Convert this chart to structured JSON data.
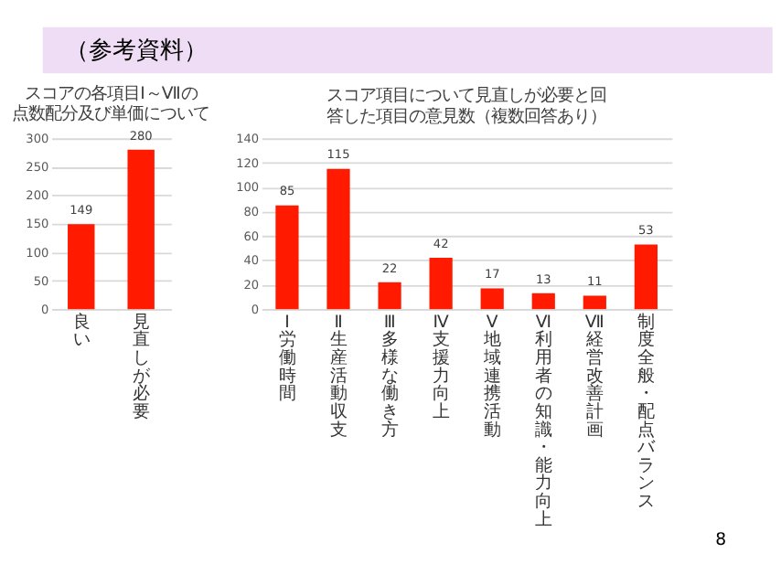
{
  "chart_data": [
    {
      "type": "bar",
      "title": "スコアの各項目Ⅰ～Ⅶの点数配分及び単価について",
      "annotations": [
        "（参考資料）"
      ],
      "categories": [
        "良い",
        "見直しが必要"
      ],
      "values": [
        149,
        280
      ],
      "color": "#ff1a00",
      "ylim": [
        0,
        300
      ],
      "yticks": [
        0,
        50,
        100,
        150,
        200,
        250,
        300
      ],
      "grid": "y",
      "data_labels": true
    },
    {
      "type": "bar",
      "title": "スコア項目について見直しが必要と回答した項目の意見数（複数回答あり）",
      "annotations": [
        "8"
      ],
      "categories": [
        "Ⅰ　労働時間",
        "Ⅱ　生産活動収支",
        "Ⅲ　多様な働き方",
        "Ⅳ　支援力向上",
        "Ⅴ　地域連携活動",
        "Ⅵ　利用者の知識・能力向上",
        "Ⅶ　経営改善計画",
        "制度全般・配点バランス"
      ],
      "values": [
        85,
        115,
        22,
        42,
        17,
        13,
        11,
        53
      ],
      "color": "#ff1a00",
      "ylim": [
        0,
        140
      ],
      "yticks": [
        0,
        20,
        40,
        60,
        80,
        100,
        120,
        140
      ],
      "grid": "y",
      "data_labels": true
    }
  ]
}
